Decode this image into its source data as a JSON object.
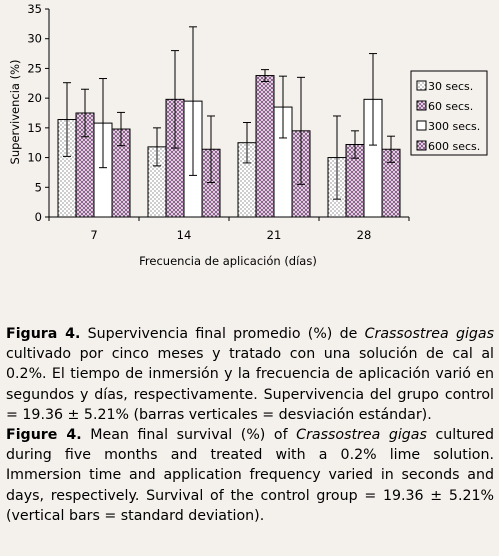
{
  "chart_data": {
    "type": "bar",
    "ylabel": "Supervivencia (%)",
    "xlabel": "Frecuencia de aplicación (días)",
    "categories": [
      "7",
      "14",
      "21",
      "28"
    ],
    "ylim": [
      0,
      35
    ],
    "yticks": [
      "0",
      "5",
      "10",
      "15",
      "20",
      "25",
      "30",
      "35"
    ],
    "grid": false,
    "legend_position": "right",
    "series": [
      {
        "name": "30 secs.",
        "pattern": "dots",
        "values": [
          16.4,
          11.8,
          12.5,
          10.0
        ],
        "errors": [
          6.2,
          3.2,
          3.4,
          7.0
        ]
      },
      {
        "name": "60 secs.",
        "pattern": "crosshatch",
        "values": [
          17.5,
          19.8,
          23.8,
          12.2
        ],
        "errors": [
          4.0,
          8.2,
          1.0,
          2.3
        ]
      },
      {
        "name": "300 secs.",
        "pattern": "white",
        "values": [
          15.8,
          19.5,
          18.5,
          19.8
        ],
        "errors": [
          7.5,
          12.5,
          5.2,
          7.7
        ]
      },
      {
        "name": "600 secs.",
        "pattern": "crosshatch",
        "values": [
          14.8,
          11.4,
          14.5,
          11.4
        ],
        "errors": [
          2.8,
          5.6,
          9.0,
          2.2
        ]
      }
    ],
    "colors": {
      "bar_border": "#000000",
      "hatch": "#8a5a8a",
      "dots": "#555555",
      "background": "#f4f1ec"
    }
  },
  "caption": {
    "es": {
      "label": "Figura 4.",
      "text_1": " Supervivencia final promedio (%) de ",
      "species": "Crassostrea gigas",
      "text_2": " cultivado por cinco meses y tratado con una solución de cal al 0.2%. El tiempo de inmersión y la frecuencia de aplicación varió en segundos y días, respectivamente. Supervivencia del grupo control = 19.36 ± 5.21% (barras verticales = desviación estándar)."
    },
    "en": {
      "label": "Figure 4.",
      "text_1": " Mean final survival (%) of ",
      "species": "Crassostrea gigas",
      "text_2": " cultured during five months and treated with a 0.2% lime solution. Immersion time and application frequency varied in seconds and days, respectively. Survival of the control group = 19.36 ± 5.21% (vertical bars = standard deviation)."
    }
  }
}
